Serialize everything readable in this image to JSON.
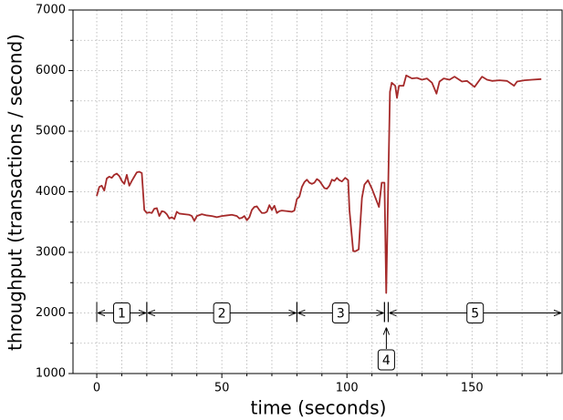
{
  "chart_data": {
    "type": "line",
    "x_label": "time (seconds)",
    "y_label": "throughput (transactions / second)",
    "color": "#a52a2a",
    "x": [
      0,
      1,
      2,
      3,
      4,
      5,
      6,
      7,
      8,
      9,
      10,
      11,
      12,
      13,
      14,
      15,
      16,
      17,
      18,
      19,
      20,
      21,
      22,
      23,
      24,
      25,
      26,
      27,
      28,
      29,
      30,
      31,
      32,
      33,
      35,
      37,
      38,
      39,
      40,
      42,
      44,
      46,
      48,
      50,
      52,
      54,
      56,
      57,
      58,
      59,
      60,
      61,
      62,
      63,
      64,
      65,
      66,
      67,
      68,
      69,
      70,
      71,
      72,
      73,
      74,
      76,
      78,
      79,
      80,
      81,
      82,
      83,
      84,
      85,
      86,
      87,
      88,
      89,
      90,
      91,
      92,
      93,
      94,
      95,
      96,
      97,
      98,
      99.3,
      100.5,
      101,
      102.5,
      103.5,
      104.7,
      106,
      107,
      108.4,
      110,
      112.8,
      113.9,
      115,
      115.7,
      117.2,
      117.9,
      119.3,
      120,
      120.8,
      122.6,
      123.7,
      126,
      128,
      130,
      132,
      134,
      135.8,
      137,
      138.7,
      141,
      143,
      146,
      148,
      151,
      154,
      156,
      158,
      161,
      164,
      166.8,
      168,
      171,
      174,
      177.7
    ],
    "values": [
      3930,
      4080,
      4100,
      4020,
      4220,
      4250,
      4230,
      4280,
      4300,
      4260,
      4180,
      4130,
      4280,
      4100,
      4180,
      4250,
      4320,
      4330,
      4310,
      3700,
      3650,
      3660,
      3650,
      3720,
      3730,
      3600,
      3680,
      3670,
      3630,
      3560,
      3580,
      3550,
      3670,
      3640,
      3630,
      3620,
      3600,
      3520,
      3600,
      3630,
      3610,
      3600,
      3580,
      3600,
      3610,
      3620,
      3600,
      3560,
      3570,
      3600,
      3530,
      3580,
      3700,
      3750,
      3760,
      3700,
      3650,
      3650,
      3670,
      3780,
      3700,
      3770,
      3650,
      3680,
      3690,
      3680,
      3670,
      3690,
      3880,
      3920,
      4080,
      4160,
      4200,
      4150,
      4130,
      4150,
      4210,
      4180,
      4120,
      4060,
      4050,
      4100,
      4200,
      4180,
      4230,
      4190,
      4170,
      4230,
      4190,
      3700,
      3020,
      3020,
      3050,
      3900,
      4120,
      4190,
      4050,
      3750,
      4150,
      4150,
      2330,
      5650,
      5800,
      5750,
      5550,
      5750,
      5750,
      5920,
      5870,
      5880,
      5850,
      5870,
      5800,
      5620,
      5820,
      5870,
      5850,
      5900,
      5820,
      5830,
      5730,
      5900,
      5850,
      5830,
      5840,
      5830,
      5750,
      5820,
      5840,
      5850,
      5860
    ],
    "xlim": [
      -9.5,
      186
    ],
    "ylim": [
      1000,
      7000
    ],
    "xticks": [
      0,
      50,
      100,
      150
    ],
    "yticks": [
      1000,
      2000,
      3000,
      4000,
      5000,
      6000,
      7000
    ],
    "x_minor_ticks": [
      -10,
      10,
      20,
      30,
      40,
      60,
      70,
      80,
      90,
      110,
      120,
      130,
      140,
      160,
      170,
      180
    ],
    "y_minor_ticks": [
      1500,
      2500,
      3500,
      4500,
      5500,
      6500
    ],
    "grid": true,
    "phases": [
      {
        "label": "1",
        "start": 0,
        "end": 20
      },
      {
        "label": "2",
        "start": 20,
        "end": 80
      },
      {
        "label": "3",
        "start": 80,
        "end": 115
      },
      {
        "label": "4",
        "start": 115,
        "end": 116.5
      },
      {
        "label": "5",
        "start": 116.5
      }
    ]
  }
}
